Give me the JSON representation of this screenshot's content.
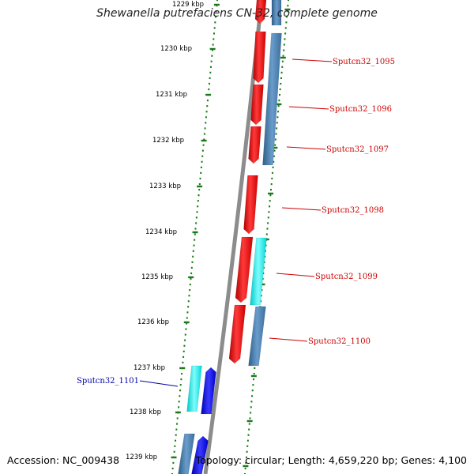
{
  "title": "Shewanella putrefaciens CN-32, complete genome",
  "accession": "Accession: NC_009438",
  "summary": "Topology: circular; Length: 4,659,220 bp; Genes: 4,100",
  "colors": {
    "backbone": "#8c8c8c",
    "tick": "#1a7a1a",
    "forward_label": "#cc0000",
    "reverse_label": "#0000aa",
    "cds_forward": "#ff0000",
    "gene_forward": "#4682b4",
    "cds_reverse": "#0000ee",
    "gene_reverse_cyan": "#00ffff"
  },
  "ticks": [
    {
      "label": "1229 kbp"
    },
    {
      "label": "1230 kbp"
    },
    {
      "label": "1231 kbp"
    },
    {
      "label": "1232 kbp"
    },
    {
      "label": "1233 kbp"
    },
    {
      "label": "1234 kbp"
    },
    {
      "label": "1235 kbp"
    },
    {
      "label": "1236 kbp"
    },
    {
      "label": "1237 kbp"
    },
    {
      "label": "1238 kbp"
    },
    {
      "label": "1239 kbp"
    }
  ],
  "genes": [
    {
      "label": "Sputcn32_1095",
      "strand": "forward"
    },
    {
      "label": "Sputcn32_1096",
      "strand": "forward"
    },
    {
      "label": "Sputcn32_1097",
      "strand": "forward"
    },
    {
      "label": "Sputcn32_1098",
      "strand": "forward"
    },
    {
      "label": "Sputcn32_1099",
      "strand": "forward"
    },
    {
      "label": "Sputcn32_1100",
      "strand": "forward"
    },
    {
      "label": "Sputcn32_1101",
      "strand": "reverse"
    }
  ]
}
